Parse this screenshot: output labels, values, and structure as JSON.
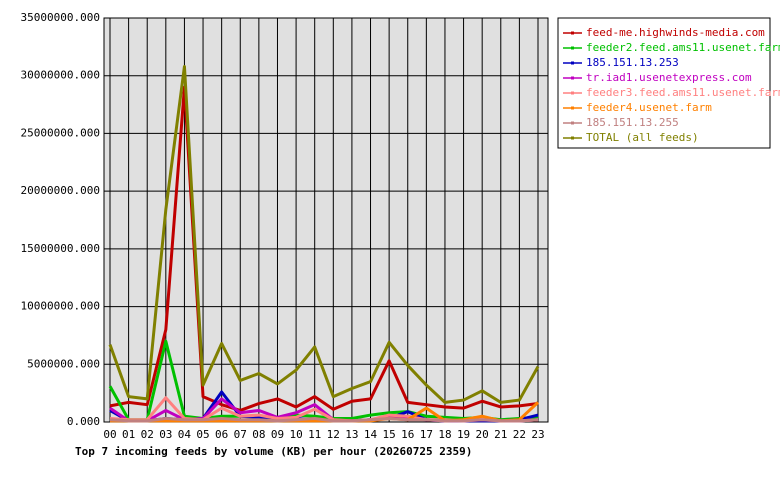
{
  "chart_data": {
    "type": "line",
    "title": "Top 7 incoming feeds by volume (KB) per hour (20260725 2359)",
    "categories": [
      "00",
      "01",
      "02",
      "03",
      "04",
      "05",
      "06",
      "07",
      "08",
      "09",
      "10",
      "11",
      "12",
      "13",
      "14",
      "15",
      "16",
      "17",
      "18",
      "19",
      "20",
      "21",
      "22",
      "23"
    ],
    "series": [
      {
        "name": "feed-me.highwinds-media.com",
        "color": "#c00000",
        "values": [
          1400000,
          1700000,
          1500000,
          8000000,
          29000000,
          2200000,
          1500000,
          1000000,
          1600000,
          2000000,
          1300000,
          2200000,
          1100000,
          1800000,
          2000000,
          5300000,
          1700000,
          1500000,
          1300000,
          1200000,
          1800000,
          1300000,
          1400000,
          1600000
        ]
      },
      {
        "name": "feeder2.feed.ams11.usenet.farm",
        "color": "#00c000",
        "values": [
          3100000,
          200000,
          200000,
          7000000,
          500000,
          300000,
          500000,
          500000,
          400000,
          300000,
          600000,
          500000,
          300000,
          300000,
          600000,
          800000,
          900000,
          500000,
          400000,
          300000,
          400000,
          200000,
          300000,
          400000
        ]
      },
      {
        "name": "185.151.13.253",
        "color": "#0000c0",
        "values": [
          1000000,
          100000,
          100000,
          300000,
          200000,
          300000,
          2600000,
          500000,
          400000,
          200000,
          300000,
          200000,
          100000,
          100000,
          200000,
          300000,
          900000,
          200000,
          100000,
          100000,
          100000,
          100000,
          200000,
          600000
        ]
      },
      {
        "name": "tr.iad1.usenetexpress.com",
        "color": "#c000c0",
        "values": [
          1200000,
          100000,
          100000,
          1000000,
          200000,
          300000,
          2000000,
          800000,
          1000000,
          400000,
          800000,
          1500000,
          200000,
          100000,
          200000,
          400000,
          300000,
          200000,
          100000,
          100000,
          200000,
          100000,
          100000,
          200000
        ]
      },
      {
        "name": "feeder3.feed.ams11.usenet.farm",
        "color": "#ff8080",
        "values": [
          300000,
          200000,
          200000,
          2100000,
          300000,
          200000,
          1200000,
          500000,
          600000,
          300000,
          400000,
          1100000,
          200000,
          100000,
          200000,
          600000,
          500000,
          200000,
          200000,
          100000,
          300000,
          100000,
          100000,
          200000
        ]
      },
      {
        "name": "feeder4.usenet.farm",
        "color": "#ff8000",
        "values": [
          100000,
          100000,
          100000,
          100000,
          100000,
          100000,
          100000,
          100000,
          100000,
          100000,
          100000,
          100000,
          100000,
          100000,
          100000,
          300000,
          200000,
          1200000,
          100000,
          200000,
          500000,
          100000,
          200000,
          1700000
        ]
      },
      {
        "name": "185.151.13.255",
        "color": "#c08080",
        "values": [
          200000,
          100000,
          100000,
          300000,
          200000,
          200000,
          300000,
          200000,
          200000,
          100000,
          200000,
          300000,
          100000,
          100000,
          200000,
          300000,
          200000,
          200000,
          100000,
          100000,
          200000,
          100000,
          100000,
          200000
        ]
      },
      {
        "name": "TOTAL (all feeds)",
        "color": "#808000",
        "values": [
          6700000,
          2200000,
          2000000,
          18400000,
          30800000,
          3200000,
          6800000,
          3600000,
          4200000,
          3300000,
          4500000,
          6500000,
          2200000,
          2900000,
          3500000,
          6900000,
          4900000,
          3200000,
          1700000,
          1900000,
          2700000,
          1700000,
          1900000,
          4800000
        ]
      }
    ],
    "ylim": [
      0,
      35000000
    ],
    "yticks": [
      {
        "value": 0,
        "label": "0.000"
      },
      {
        "value": 5000000,
        "label": "5000000.000"
      },
      {
        "value": 10000000,
        "label": "10000000.000"
      },
      {
        "value": 15000000,
        "label": "15000000.000"
      },
      {
        "value": 20000000,
        "label": "20000000.000"
      },
      {
        "value": 25000000,
        "label": "25000000.000"
      },
      {
        "value": 30000000,
        "label": "30000000.000"
      },
      {
        "value": 35000000,
        "label": "35000000.000"
      }
    ],
    "grid": true
  }
}
